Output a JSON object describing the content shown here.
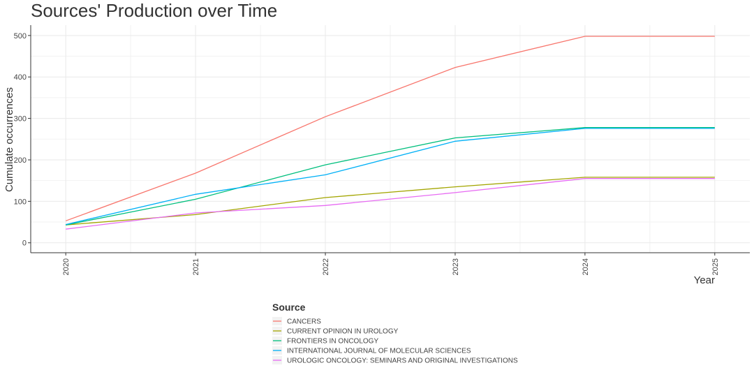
{
  "chart_data": {
    "type": "line",
    "title": "Sources' Production over Time",
    "xlabel": "Year",
    "ylabel": "Cumulate occurrences",
    "x": [
      2020,
      2021,
      2022,
      2023,
      2024,
      2025
    ],
    "xlim": [
      2019.73,
      2025.27
    ],
    "ylim": [
      -24,
      525
    ],
    "yticks": [
      0,
      100,
      200,
      300,
      400,
      500
    ],
    "grid": true,
    "legend": {
      "title": "Source",
      "position": "bottom"
    },
    "series": [
      {
        "name": "CANCERS",
        "color": "#F8766D",
        "values": [
          53,
          168,
          304,
          423,
          498,
          498
        ]
      },
      {
        "name": "CURRENT OPINION IN UROLOGY",
        "color": "#A3A500",
        "values": [
          43,
          68,
          109,
          135,
          158,
          158
        ]
      },
      {
        "name": "FRONTIERS IN ONCOLOGY",
        "color": "#00BF7D",
        "values": [
          43,
          105,
          188,
          253,
          278,
          278
        ]
      },
      {
        "name": "INTERNATIONAL JOURNAL OF MOLECULAR SCIENCES",
        "color": "#00B0F6",
        "values": [
          44,
          117,
          164,
          245,
          276,
          276
        ]
      },
      {
        "name": "UROLOGIC ONCOLOGY: SEMINARS AND ORIGINAL INVESTIGATIONS",
        "color": "#E76BF3",
        "values": [
          33,
          72,
          90,
          121,
          155,
          155
        ]
      }
    ]
  }
}
